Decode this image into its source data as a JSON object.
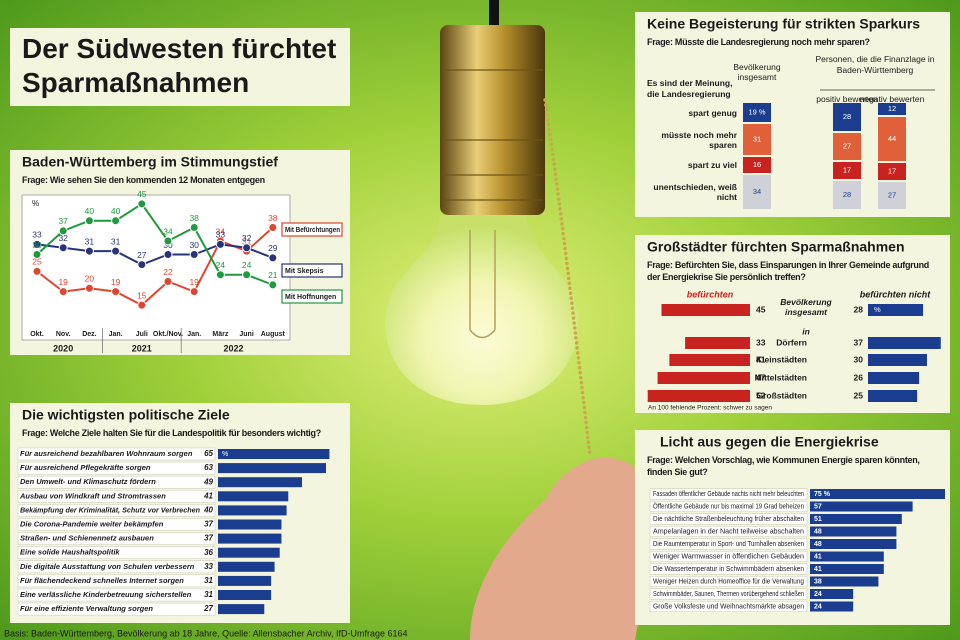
{
  "title": "Der Südwesten fürchtet Sparmaßnahmen",
  "source": "Basis: Baden-Württemberg, Bevölkerung ab 18 Jahre, Quelle: Allensbacher Archiv, IfD-Umfrage 6164",
  "chart_data": [
    {
      "type": "line",
      "title": "Baden-Württemberg im Stimmungstief",
      "subtitle": "Frage: Wie sehen Sie den kommenden 12 Monaten entgegen",
      "y_label": "%",
      "categories": [
        "Okt.",
        "Nov.",
        "Dez.",
        "Jan.",
        "Juli",
        "Okt./Nov.",
        "Jan.",
        "März",
        "Juni",
        "August"
      ],
      "groups": [
        {
          "label": "2020",
          "count": 3
        },
        {
          "label": "2021",
          "count": 3
        },
        {
          "label": "2022",
          "count": 4
        }
      ],
      "ylim": [
        10,
        50
      ],
      "series": [
        {
          "name": "Mit Befürchtungen",
          "color": "#e0452f",
          "values": [
            25,
            19,
            20,
            19,
            15,
            22,
            19,
            34,
            31,
            38
          ]
        },
        {
          "name": "Mit Skepsis",
          "color": "#27337a",
          "values": [
            33,
            32,
            31,
            31,
            27,
            30,
            30,
            33,
            32,
            29
          ]
        },
        {
          "name": "Mit Hoffnungen",
          "color": "#1f9a3e",
          "values": [
            30,
            37,
            40,
            40,
            45,
            34,
            38,
            24,
            24,
            21
          ]
        }
      ]
    },
    {
      "type": "stacked_bar",
      "title": "Keine Begeisterung für strikten Sparkurs",
      "subtitle": "Frage: Müsste die Landesregierung noch mehr sparen?",
      "category_header": "Es sind der Meinung, die Landesregierung",
      "categories": [
        "spart genug",
        "müsste noch mehr sparen",
        "spart zu viel",
        "unentschieden, weiß nicht"
      ],
      "colors": [
        "#1b3d8f",
        "#e0603a",
        "#c8231e",
        "#cfd0d8"
      ],
      "group_label": "Personen, die die Finanzlage in Baden-Württemberg",
      "ylim": [
        0,
        100
      ],
      "series": [
        {
          "name": "Bevölkerung insgesamt",
          "values": [
            19,
            31,
            16,
            34
          ],
          "value_labels": [
            "19 %",
            "31",
            "16",
            "34"
          ]
        },
        {
          "name": "positiv bewerten",
          "values": [
            28,
            27,
            17,
            28
          ]
        },
        {
          "name": "negativ bewerten",
          "values": [
            12,
            44,
            17,
            27
          ]
        }
      ]
    },
    {
      "type": "diverging_bar",
      "title": "Großstädter fürchten Sparmaßnahmen",
      "subtitle": "Frage: Befürchten Sie, dass Einsparungen in Ihrer Gemeinde aufgrund der Energiekrise Sie persönlich treffen?",
      "category_prefix": "in",
      "categories": [
        "Bevölkerung insgesamt",
        "Dörfern",
        "Kleinstädten",
        "Mittelstädten",
        "Großstädten"
      ],
      "unit": "%",
      "xlim": [
        0,
        60
      ],
      "series": [
        {
          "name": "befürchten",
          "color": "#c8231e",
          "values": [
            45,
            33,
            41,
            47,
            52
          ]
        },
        {
          "name": "befürchten nicht",
          "color": "#1b3d8f",
          "values": [
            28,
            37,
            30,
            26,
            25
          ]
        }
      ],
      "note": "An 100 fehlende Prozent: schwer zu sagen"
    },
    {
      "type": "hbar",
      "title": "Die wichtigsten politische Ziele",
      "subtitle": "Frage: Welche Ziele halten Sie für die Landespolitik für besonders wichtig?",
      "categories": [
        "Für ausreichend bezahlbaren Wohnraum sorgen",
        "Für ausreichend Pflegekräfte sorgen",
        "Den Umwelt- und Klimaschutz fördern",
        "Ausbau von Windkraft und Stromtrassen",
        "Bekämpfung der Kriminalität, Schutz vor Verbrechen",
        "Die Corona-Pandemie weiter bekämpfen",
        "Straßen- und Schienennetz ausbauen",
        "Eine solide Haushaltspolitik",
        "Die digitale Ausstattung von Schulen verbessern",
        "Für flächendeckend schnelles Internet sorgen",
        "Eine verlässliche Kinderbetreuung sicherstellen",
        "Für eine effiziente Verwaltung sorgen"
      ],
      "values": [
        65,
        63,
        49,
        41,
        40,
        37,
        37,
        36,
        33,
        31,
        31,
        27
      ],
      "unit": "%",
      "color": "#1b3d8f",
      "xlim": [
        0,
        70
      ],
      "value_labels_inside": false
    },
    {
      "type": "hbar",
      "title": "Licht aus gegen die Energiekrise",
      "subtitle": "Frage: Welchen Vorschlag, wie Kommunen Energie sparen könnten, finden Sie gut?",
      "categories": [
        "Fassaden öffentlicher Gebäude nachts nicht mehr beleuchten",
        "Öffentliche Gebäude nur bis maximal 19 Grad beheizen",
        "Die nächtliche Straßenbeleuchtung früher abschalten",
        "Ampelanlagen in der Nacht teilweise abschalten",
        "Die Raumtemperatur in Sport- und Turnhallen absenken",
        "Weniger Warmwasser in öffentlichen Gebäuden",
        "Die Wassertemperatur in Schwimmbädern absenken",
        "Weniger Heizen durch Homeoffice für die Verwaltung",
        "Schwimmbäder, Saunen, Thermen vorübergehend schließen",
        "Große Volksfeste und Weihnachtsmärkte absagen"
      ],
      "values": [
        75,
        57,
        51,
        48,
        48,
        41,
        41,
        38,
        24,
        24
      ],
      "value_labels": [
        "75 %",
        "57",
        "51",
        "48",
        "48",
        "41",
        "41",
        "38",
        "24",
        "24"
      ],
      "color": "#1b3d8f",
      "xlim": [
        0,
        80
      ],
      "value_labels_inside": true
    }
  ]
}
